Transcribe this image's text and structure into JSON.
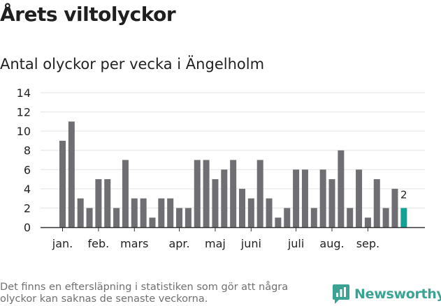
{
  "header": {
    "title": "Årets viltolyckor",
    "subtitle": "Antal olyckor per vecka i Ängelholm"
  },
  "footer": {
    "note": "Det finns en eftersläpning i statistiken som gör att några olyckor kan saknas de senaste veckorna.",
    "brand": "Newsworthy",
    "brand_icon": "newsworthy-logo-icon"
  },
  "colors": {
    "bar": "#6f6e73",
    "highlight": "#13a297",
    "grid": "#e3e3e3",
    "axis": "#333333",
    "brand": "#3aa394"
  },
  "chart_data": {
    "type": "bar",
    "title": "Antal olyckor per vecka i Ängelholm",
    "xlabel": "",
    "ylabel": "",
    "ylim": [
      0,
      14
    ],
    "yticks": [
      0,
      2,
      4,
      6,
      8,
      10,
      12,
      14
    ],
    "grid": true,
    "values": [
      9,
      11,
      3,
      2,
      5,
      5,
      2,
      7,
      3,
      3,
      1,
      3,
      3,
      2,
      2,
      7,
      7,
      5,
      6,
      7,
      4,
      3,
      7,
      3,
      1,
      2,
      6,
      6,
      2,
      6,
      5,
      8,
      2,
      6,
      1,
      5,
      2,
      4,
      2
    ],
    "highlight_index": 38,
    "annotations": [
      {
        "index": 38,
        "text": "2"
      }
    ],
    "month_labels": [
      {
        "label": "jan.",
        "index": 0
      },
      {
        "label": "feb.",
        "index": 4
      },
      {
        "label": "mars",
        "index": 8
      },
      {
        "label": "apr.",
        "index": 13
      },
      {
        "label": "maj",
        "index": 17
      },
      {
        "label": "juni",
        "index": 21
      },
      {
        "label": "juli",
        "index": 26
      },
      {
        "label": "aug.",
        "index": 30
      },
      {
        "label": "sep.",
        "index": 34
      }
    ]
  }
}
